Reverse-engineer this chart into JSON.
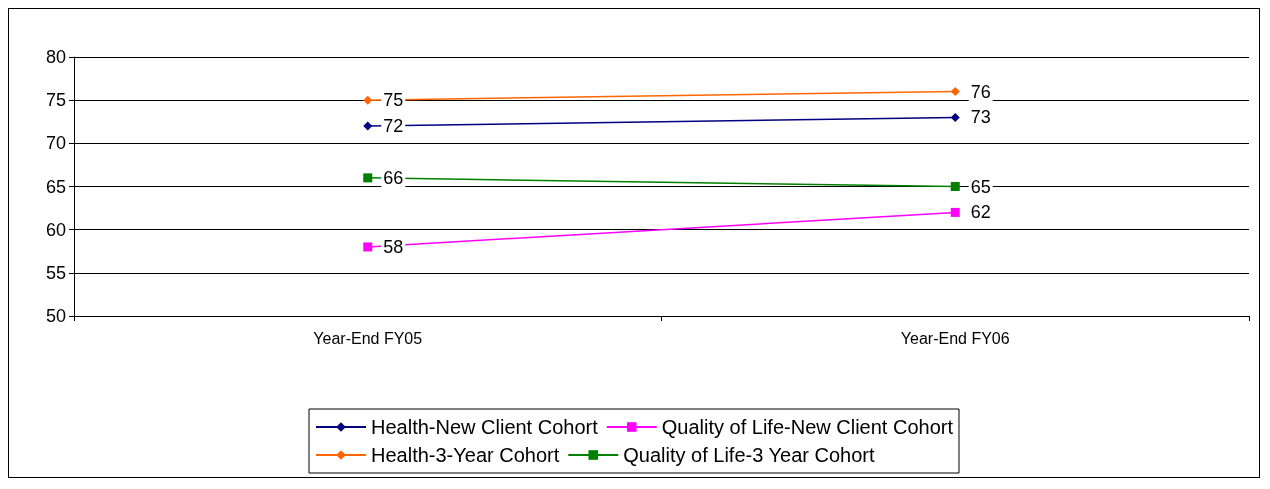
{
  "chart_data": {
    "type": "line",
    "categories": [
      "Year-End FY05",
      "Year-End FY06"
    ],
    "series": [
      {
        "name": "Health-New Client Cohort",
        "color": "#000080",
        "marker": "diamond",
        "values": [
          72,
          73
        ]
      },
      {
        "name": "Quality of Life-New Client Cohort",
        "color": "#ff00ff",
        "marker": "square",
        "values": [
          58,
          62
        ]
      },
      {
        "name": "Health-3-Year Cohort",
        "color": "#ff6600",
        "marker": "diamond",
        "values": [
          75,
          76
        ]
      },
      {
        "name": "Quality of Life-3 Year Cohort",
        "color": "#008000",
        "marker": "square",
        "values": [
          66,
          65
        ]
      }
    ],
    "ylim": [
      50,
      80
    ],
    "yticks": [
      50,
      55,
      60,
      65,
      70,
      75,
      80
    ],
    "grid": "y",
    "legend": "bottom",
    "data_labels": true
  }
}
